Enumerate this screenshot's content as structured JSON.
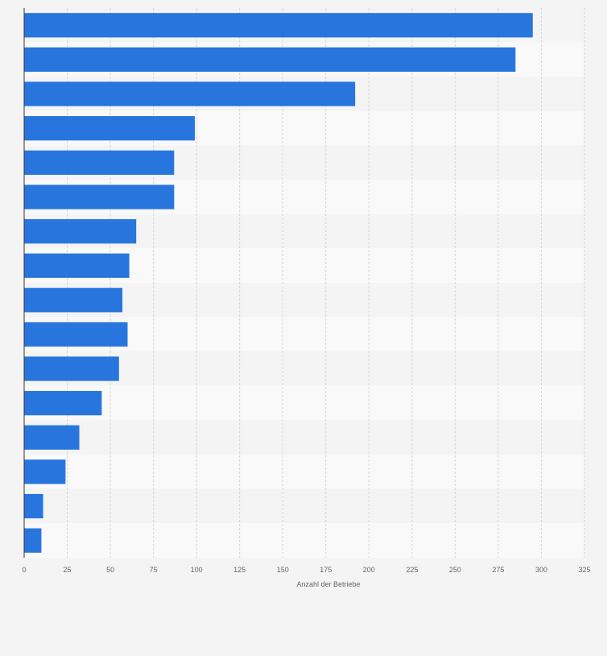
{
  "chart_data": {
    "type": "bar",
    "orientation": "horizontal",
    "title": "",
    "xlabel": "Anzahl der Betriebe",
    "ylabel": "",
    "xlim": [
      0,
      325
    ],
    "xticks": [
      0,
      25,
      50,
      75,
      100,
      125,
      150,
      175,
      200,
      225,
      250,
      275,
      300,
      325
    ],
    "grid": true,
    "categories": [
      "",
      "",
      "",
      "",
      "",
      "",
      "",
      "",
      "",
      "",
      "",
      "",
      "",
      "",
      "",
      ""
    ],
    "values": [
      295,
      285,
      192,
      99,
      87,
      87,
      65,
      61,
      57,
      60,
      55,
      45,
      32,
      24,
      11,
      10
    ],
    "colors": {
      "bar": "#2876dd",
      "band_dark": "#f4f4f4",
      "band_light": "#f9f9f9",
      "grid": "#d6d6d6",
      "axis": "#333333",
      "tick_text": "#666666",
      "page_bg": "#f4f4f4"
    }
  }
}
